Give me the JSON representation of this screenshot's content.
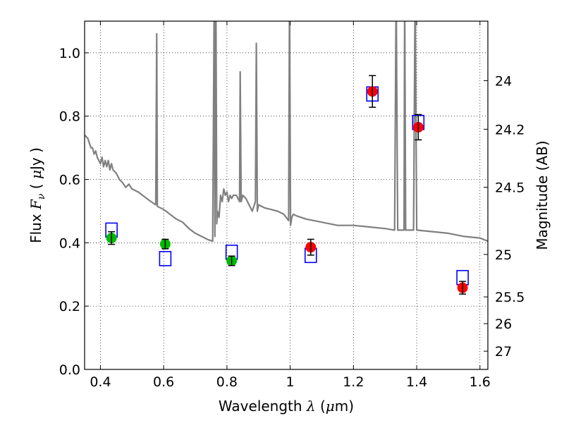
{
  "chart_data": {
    "type": "scatter",
    "xlabel": {
      "pre": "Wavelength  ",
      "sym": "λ",
      "post": " (",
      "mu": "μ",
      "unit": "m)"
    },
    "ylabel": {
      "pre": "Flux  ",
      "sym": "F",
      "sub": "ν",
      "post": "  ( ",
      "mu": "μ",
      "unit": "Jy )"
    },
    "y2label": "Magnitude (AB)",
    "xlim": [
      0.35,
      1.625
    ],
    "ylim": [
      0.0,
      1.1
    ],
    "grid": true,
    "xticks": [
      0.4,
      0.6,
      0.8,
      1.0,
      1.2,
      1.4,
      1.6
    ],
    "xtick_labels": [
      "0.4",
      "0.6",
      "0.8",
      "1",
      "1.2",
      "1.4",
      "1.6"
    ],
    "yticks": [
      0.0,
      0.2,
      0.4,
      0.6,
      0.8,
      1.0
    ],
    "ytick_labels": [
      "0.0",
      "0.2",
      "0.4",
      "0.6",
      "0.8",
      "1.0"
    ],
    "y2ticks": [
      {
        "mag": 24,
        "label": "24"
      },
      {
        "mag": 24.2,
        "label": "24.2"
      },
      {
        "mag": 24.5,
        "label": "24.5"
      },
      {
        "mag": 25,
        "label": "25"
      },
      {
        "mag": 25.5,
        "label": "25.5"
      },
      {
        "mag": 26,
        "label": "26"
      },
      {
        "mag": 27,
        "label": "27"
      }
    ],
    "series": [
      {
        "kind": "model-spectrum",
        "color": "#808080",
        "x": [
          0.35,
          0.36,
          0.37,
          0.375,
          0.38,
          0.385,
          0.39,
          0.395,
          0.4,
          0.405,
          0.41,
          0.415,
          0.42,
          0.425,
          0.43,
          0.435,
          0.44,
          0.45,
          0.46,
          0.47,
          0.48,
          0.49,
          0.5,
          0.52,
          0.54,
          0.56,
          0.575,
          0.578,
          0.58,
          0.6,
          0.62,
          0.64,
          0.66,
          0.68,
          0.7,
          0.72,
          0.74,
          0.755,
          0.76,
          0.762,
          0.765,
          0.768,
          0.77,
          0.775,
          0.78,
          0.785,
          0.79,
          0.795,
          0.8,
          0.805,
          0.81,
          0.815,
          0.82,
          0.83,
          0.84,
          0.842,
          0.845,
          0.85,
          0.86,
          0.87,
          0.88,
          0.89,
          0.893,
          0.896,
          0.9,
          0.92,
          0.94,
          0.96,
          0.98,
          0.995,
          0.998,
          1.001,
          1.005,
          1.01,
          1.02,
          1.05,
          1.1,
          1.15,
          1.2,
          1.25,
          1.3,
          1.33,
          1.335,
          1.34,
          1.36,
          1.362,
          1.365,
          1.37,
          1.39,
          1.395,
          1.4,
          1.45,
          1.5,
          1.55,
          1.6,
          1.625
        ],
        "y": [
          0.74,
          0.73,
          0.7,
          0.7,
          0.68,
          0.69,
          0.67,
          0.66,
          0.65,
          0.67,
          0.64,
          0.66,
          0.64,
          0.66,
          0.63,
          0.65,
          0.63,
          0.62,
          0.6,
          0.59,
          0.575,
          0.585,
          0.57,
          0.56,
          0.545,
          0.53,
          0.52,
          1.06,
          0.515,
          0.505,
          0.49,
          0.475,
          0.465,
          0.445,
          0.43,
          0.42,
          0.41,
          0.405,
          1.2,
          0.42,
          1.2,
          0.46,
          0.5,
          0.48,
          0.55,
          0.53,
          0.57,
          0.55,
          0.56,
          0.53,
          0.55,
          0.54,
          0.55,
          0.55,
          0.53,
          0.94,
          0.53,
          0.55,
          0.54,
          0.52,
          0.5,
          0.53,
          1.03,
          0.5,
          0.52,
          0.51,
          0.505,
          0.5,
          0.49,
          0.47,
          1.2,
          0.455,
          0.48,
          0.49,
          0.485,
          0.475,
          0.465,
          0.455,
          0.455,
          0.45,
          0.445,
          0.44,
          1.2,
          0.44,
          0.44,
          1.2,
          0.44,
          0.44,
          0.44,
          1.2,
          0.44,
          0.435,
          0.43,
          0.42,
          0.415,
          0.405
        ]
      },
      {
        "kind": "model-photometry",
        "marker": "open-square",
        "color": "#0000ff",
        "x": [
          0.435,
          0.605,
          0.815,
          1.065,
          1.26,
          1.405,
          1.545
        ],
        "y": [
          0.44,
          0.35,
          0.37,
          0.36,
          0.87,
          0.78,
          0.29
        ]
      },
      {
        "kind": "observed",
        "marker": "filled-circle",
        "color": "#00bb00",
        "x": [
          0.435,
          0.605,
          0.815
        ],
        "y": [
          0.415,
          0.396,
          0.343
        ],
        "err": [
          0.02,
          0.015,
          0.015
        ]
      },
      {
        "kind": "observed",
        "marker": "filled-circle",
        "color": "#ff0000",
        "x": [
          1.065,
          1.26,
          1.405,
          1.545
        ],
        "y": [
          0.386,
          0.878,
          0.765,
          0.258
        ],
        "err": [
          0.025,
          0.05,
          0.04,
          0.02
        ]
      }
    ]
  }
}
